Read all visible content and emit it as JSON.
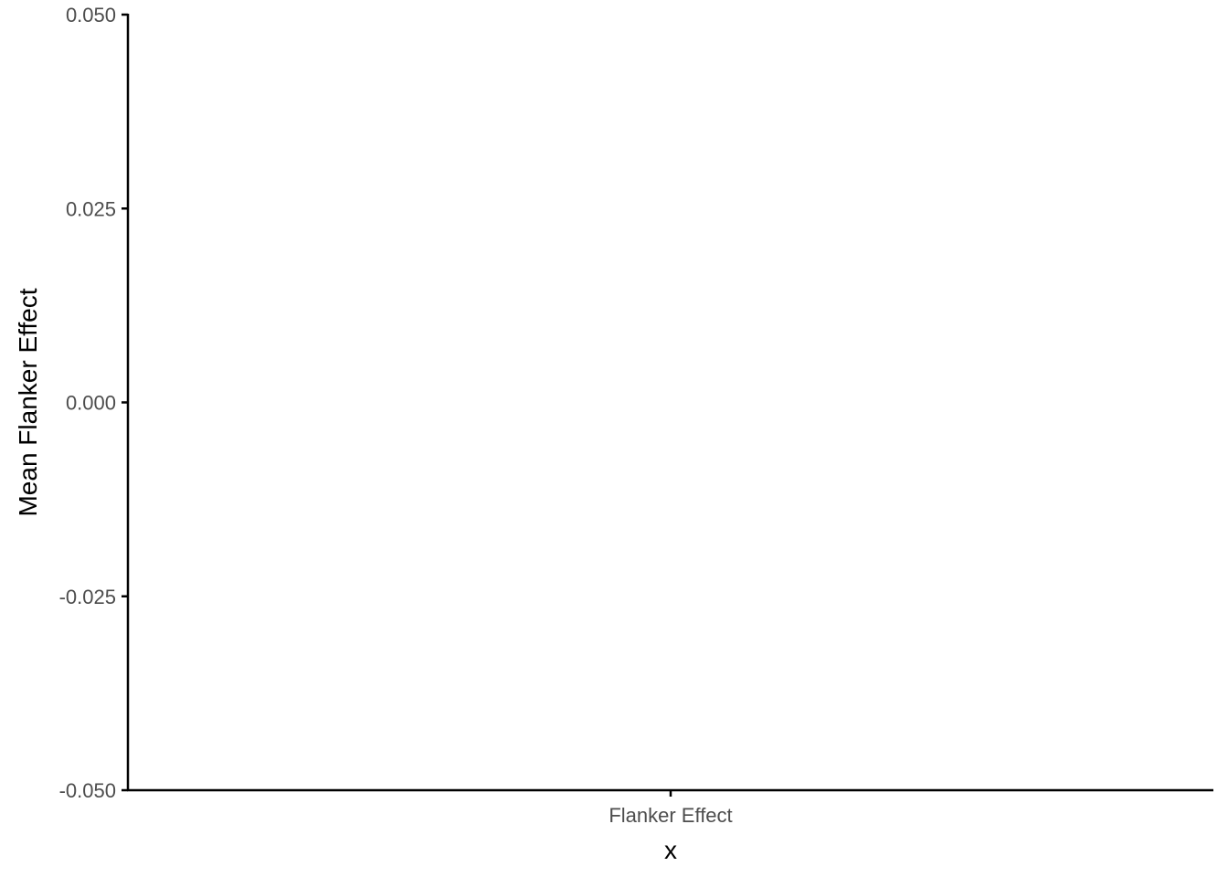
{
  "chart_data": {
    "type": "bar",
    "categories": [
      "Flanker Effect"
    ],
    "values": [
      0.0
    ],
    "title": "",
    "xlabel": "x",
    "ylabel": "Mean Flanker Effect",
    "ylim": [
      -0.05,
      0.05
    ],
    "yticks": [
      -0.05,
      -0.025,
      0.0,
      0.025,
      0.05
    ],
    "ytick_labels": [
      "-0.050",
      "-0.025",
      "0.000",
      "0.025",
      "0.050"
    ],
    "grid": false,
    "legend": "none",
    "colors": {
      "axis": "#000000",
      "tick_label": "#4d4d4d",
      "bar": "#000000"
    }
  }
}
